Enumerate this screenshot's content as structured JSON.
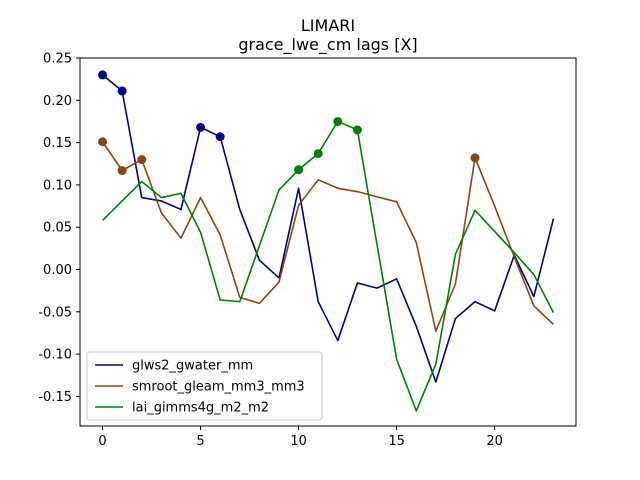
{
  "chart_data": {
    "type": "line",
    "title": "LIMARI",
    "subtitle": "grace_lwe_cm lags [X]",
    "xlabel": "",
    "ylabel": "",
    "xlim": [
      -1.15,
      24.15
    ],
    "ylim": [
      -0.185,
      0.25
    ],
    "xticks": [
      0,
      5,
      10,
      15,
      20
    ],
    "yticks": [
      -0.15,
      -0.1,
      -0.05,
      0.0,
      0.05,
      0.1,
      0.15,
      0.2,
      0.25
    ],
    "grid": false,
    "legend_position": "lower-left",
    "x": [
      0,
      1,
      2,
      3,
      4,
      5,
      6,
      7,
      8,
      9,
      10,
      11,
      12,
      13,
      14,
      15,
      16,
      17,
      18,
      19,
      20,
      21,
      22,
      23
    ],
    "series": [
      {
        "name": "glws2_gwater_mm",
        "color": "#000080",
        "values": [
          0.23,
          0.211,
          0.085,
          0.081,
          0.071,
          0.168,
          0.157,
          0.071,
          0.011,
          -0.01,
          0.096,
          -0.038,
          -0.084,
          -0.016,
          -0.022,
          -0.011,
          -0.067,
          -0.133,
          -0.058,
          -0.038,
          -0.049,
          0.017,
          -0.032,
          0.06
        ],
        "markers": [
          0,
          1,
          5,
          6
        ]
      },
      {
        "name": "smroot_gleam_mm3_mm3",
        "color": "#8B4513",
        "values": [
          0.151,
          0.117,
          0.13,
          0.067,
          0.037,
          0.085,
          0.041,
          -0.033,
          -0.04,
          -0.015,
          0.076,
          0.106,
          0.096,
          0.092,
          0.086,
          0.08,
          0.032,
          -0.073,
          -0.017,
          0.132,
          0.075,
          0.015,
          -0.043,
          -0.065
        ],
        "markers": [
          0,
          1,
          2,
          19
        ]
      },
      {
        "name": "lai_gimms4g_m2_m2",
        "color": "#008000",
        "values": [
          0.058,
          null,
          0.104,
          0.085,
          0.09,
          0.044,
          -0.036,
          -0.038,
          null,
          0.094,
          0.118,
          0.137,
          0.175,
          0.165,
          null,
          -0.106,
          -0.167,
          -0.112,
          0.018,
          0.07,
          0.045,
          0.02,
          -0.006,
          -0.051
        ],
        "markers": [
          10,
          11,
          12,
          13
        ]
      }
    ]
  }
}
